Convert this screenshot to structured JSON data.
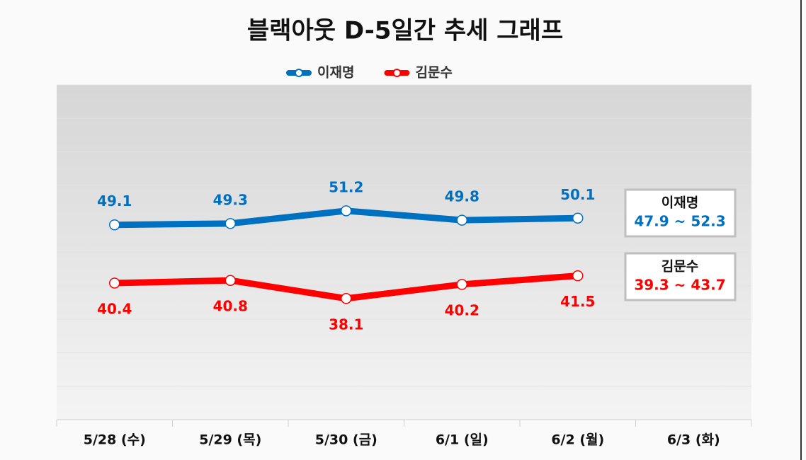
{
  "chart_data": {
    "type": "line",
    "title": "블랙아웃 D-5일간  추세 그래프",
    "categories": [
      "5/28 (수)",
      "5/29 (목)",
      "5/30 (금)",
      "6/1 (일)",
      "6/2 (월)",
      "6/3 (화)"
    ],
    "series": [
      {
        "name": "이재명",
        "color": "#0070c0",
        "values": [
          49.1,
          49.3,
          51.2,
          49.8,
          50.1,
          null
        ]
      },
      {
        "name": "김문수",
        "color": "#ff0000",
        "values": [
          40.4,
          40.8,
          38.1,
          40.2,
          41.5,
          null
        ]
      }
    ],
    "ylim": [
      20,
      70
    ],
    "yticks": [
      20,
      25,
      30,
      35,
      40,
      45,
      50,
      55,
      60,
      65,
      70
    ],
    "grid": true,
    "legend": "top",
    "annotations": [
      {
        "title": "이재명",
        "text": "47.9 ~ 52.3"
      },
      {
        "title": "김문수",
        "text": "39.3 ~ 43.7"
      }
    ]
  }
}
